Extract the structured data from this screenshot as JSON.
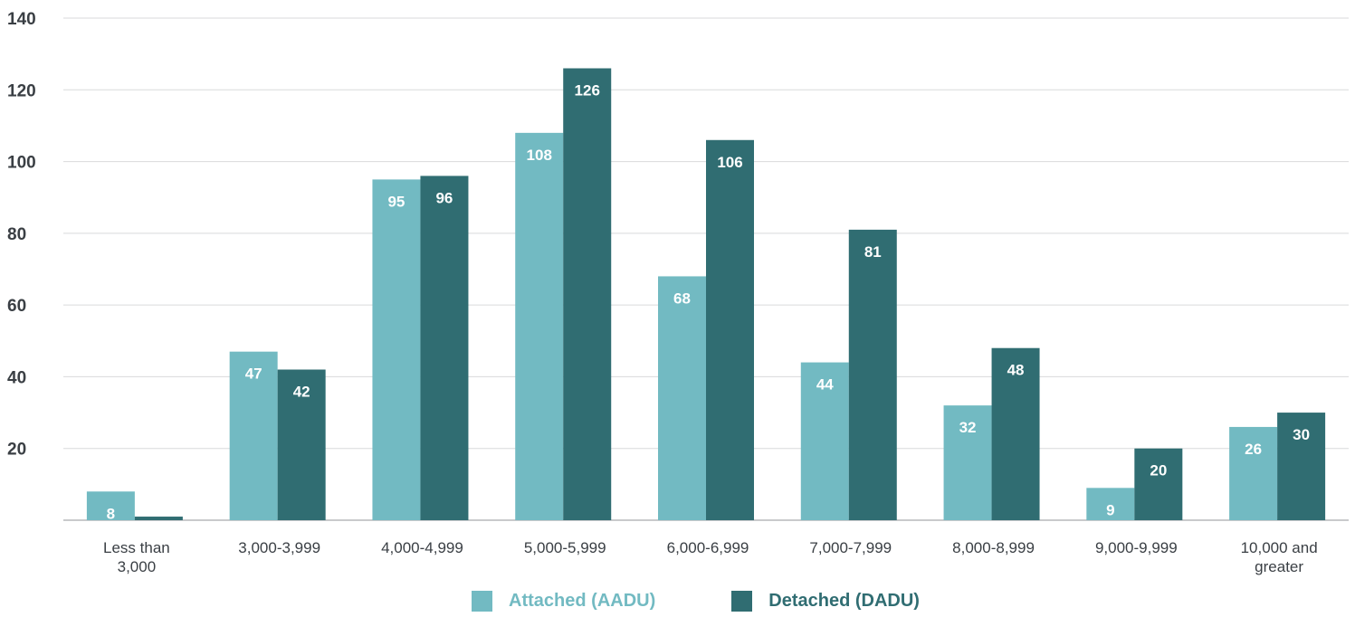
{
  "chart_data": {
    "type": "bar",
    "title": "",
    "xlabel": "",
    "ylabel": "",
    "ylim": [
      0,
      140
    ],
    "yticks": [
      "20",
      "40",
      "60",
      "80",
      "100",
      "120",
      "140"
    ],
    "grid": "horizontal",
    "legend_position": "bottom",
    "categories": [
      [
        "Less than",
        "3,000"
      ],
      [
        "3,000-3,999"
      ],
      [
        "4,000-4,999"
      ],
      [
        "5,000-5,999"
      ],
      [
        "6,000-6,999"
      ],
      [
        "7,000-7,999"
      ],
      [
        "8,000-8,999"
      ],
      [
        "9,000-9,999"
      ],
      [
        "10,000 and",
        "greater"
      ]
    ],
    "series": [
      {
        "name": "Attached (AADU)",
        "color": "#72bac2",
        "values": [
          8,
          47,
          95,
          108,
          68,
          44,
          32,
          9,
          26
        ]
      },
      {
        "name": "Detached (DADU)",
        "color": "#306d72",
        "values": [
          1,
          42,
          96,
          126,
          106,
          81,
          48,
          20,
          30
        ]
      }
    ]
  },
  "legend": {
    "items": [
      {
        "label": "Attached (AADU)",
        "color": "#72bac2"
      },
      {
        "label": "Detached (DADU)",
        "color": "#306d72"
      }
    ]
  }
}
